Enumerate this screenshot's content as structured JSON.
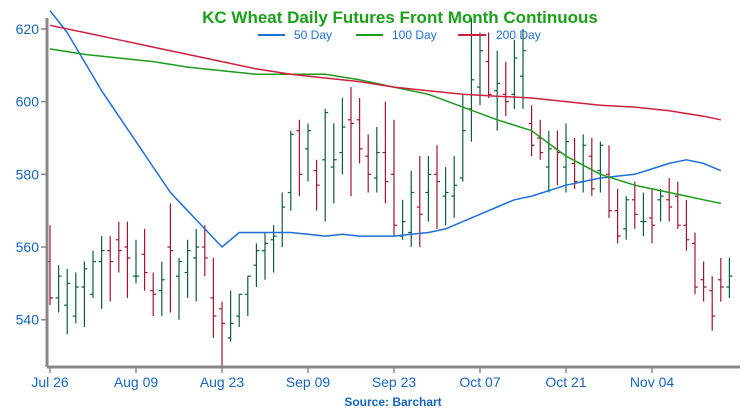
{
  "chart_data": {
    "type": "line",
    "title": "KC Wheat Daily Futures Front Month Continuous",
    "source": "Source: Barchart",
    "ylim": [
      527,
      623
    ],
    "yticks": [
      540,
      560,
      580,
      600,
      620
    ],
    "x_tick_labels": [
      "Jul 26",
      "Aug 09",
      "Aug 23",
      "Sep 09",
      "Sep 23",
      "Oct 07",
      "Oct 21",
      "Nov 04"
    ],
    "x_tick_index": [
      0,
      10,
      20,
      30,
      40,
      50,
      60,
      70
    ],
    "colors": {
      "title": "#1aa01a",
      "axis": "#888888",
      "ticks": "#1565c0",
      "source": "#1565c0",
      "up_bar": "#0b5d3c",
      "down_bar": "#a31530"
    },
    "series": [
      {
        "name": "50 Day",
        "color": "#1e6fd9",
        "x": [
          0,
          2,
          4,
          6,
          8,
          10,
          12,
          14,
          16,
          18,
          20,
          22,
          24,
          26,
          28,
          30,
          32,
          34,
          36,
          38,
          40,
          42,
          44,
          46,
          48,
          50,
          52,
          54,
          56,
          58,
          60,
          62,
          64,
          66,
          68,
          70,
          72,
          74,
          76,
          78
        ],
        "values": [
          625,
          619,
          611,
          603,
          596,
          589,
          582,
          575,
          570,
          565,
          560,
          564,
          564,
          564,
          564,
          563.5,
          563,
          563.5,
          563,
          563,
          563,
          563.5,
          564,
          565,
          567,
          569,
          571,
          573,
          574,
          575.5,
          577,
          578,
          579,
          579.5,
          580,
          581.5,
          583,
          584,
          583,
          581
        ]
      },
      {
        "name": "100 Day",
        "color": "#1e9a1e",
        "x": [
          0,
          4,
          8,
          12,
          16,
          20,
          24,
          28,
          32,
          36,
          40,
          44,
          48,
          52,
          56,
          60,
          62,
          64,
          66,
          68,
          70,
          72,
          74,
          76,
          78
        ],
        "values": [
          614.5,
          613,
          612,
          611,
          609.5,
          608.5,
          607.5,
          607.5,
          607.5,
          606,
          604,
          602,
          598.5,
          595,
          592,
          585,
          582.5,
          580,
          578.5,
          577,
          576,
          575,
          574,
          573,
          572
        ]
      },
      {
        "name": "200 Day",
        "color": "#cf1f3f",
        "x": [
          0,
          4,
          8,
          12,
          16,
          20,
          24,
          28,
          32,
          36,
          40,
          44,
          48,
          52,
          56,
          60,
          64,
          68,
          72,
          76,
          78
        ],
        "values": [
          621,
          619,
          617,
          615,
          613,
          611,
          609,
          607.5,
          606.5,
          605.5,
          604,
          603,
          602,
          601.5,
          601,
          600,
          599,
          598.5,
          597.5,
          596,
          595
        ]
      }
    ],
    "ohlc": [
      [
        556,
        566,
        544,
        546
      ],
      [
        546,
        555,
        542,
        552
      ],
      [
        544,
        554,
        536,
        550
      ],
      [
        541,
        553,
        539,
        549
      ],
      [
        549,
        556,
        538,
        554
      ],
      [
        547,
        559,
        546,
        556
      ],
      [
        556,
        563,
        543,
        559
      ],
      [
        559,
        563,
        545,
        556
      ],
      [
        562,
        567,
        553,
        559
      ],
      [
        560,
        567,
        546,
        557
      ],
      [
        552,
        562,
        550,
        552
      ],
      [
        558,
        565,
        548,
        553
      ],
      [
        548,
        553,
        541,
        547
      ],
      [
        548,
        556,
        541,
        551
      ],
      [
        560,
        572,
        542,
        559
      ],
      [
        552,
        557,
        540,
        556
      ],
      [
        553,
        562,
        546,
        559
      ],
      [
        557,
        565,
        545,
        560
      ],
      [
        560,
        566,
        552,
        557
      ],
      [
        546,
        557,
        535,
        541
      ],
      [
        543,
        545,
        527,
        539
      ],
      [
        535,
        548,
        534,
        539
      ],
      [
        541,
        547,
        538,
        547
      ],
      [
        547,
        552,
        541,
        552
      ],
      [
        555,
        561,
        549,
        559
      ],
      [
        559,
        564,
        551,
        561
      ],
      [
        562,
        566,
        553,
        563
      ],
      [
        564,
        575,
        560,
        571
      ],
      [
        575,
        592,
        570,
        591
      ],
      [
        592,
        595,
        574,
        580
      ],
      [
        587,
        594,
        578,
        592
      ],
      [
        581,
        584,
        570,
        577
      ],
      [
        584,
        598,
        567,
        597
      ],
      [
        582,
        594,
        572,
        584
      ],
      [
        586,
        601,
        580,
        593
      ],
      [
        595,
        604,
        574,
        594
      ],
      [
        595,
        601,
        583,
        587
      ],
      [
        585,
        591,
        575,
        580
      ],
      [
        579,
        593,
        575,
        586
      ],
      [
        586,
        600,
        572,
        578
      ],
      [
        580,
        595,
        563,
        566
      ],
      [
        563,
        573,
        562,
        567
      ],
      [
        564,
        581,
        560,
        575
      ],
      [
        571,
        585,
        560,
        569
      ],
      [
        575,
        585,
        567,
        580
      ],
      [
        580,
        588,
        565,
        578
      ],
      [
        574,
        582,
        566,
        575
      ],
      [
        574,
        585,
        568,
        577
      ],
      [
        579,
        602,
        578,
        592
      ],
      [
        598,
        623,
        589,
        606
      ],
      [
        604,
        619,
        599,
        614
      ],
      [
        611,
        619,
        601,
        602
      ],
      [
        603,
        614,
        592,
        605
      ],
      [
        602,
        611,
        596,
        600
      ],
      [
        602,
        617,
        598,
        612
      ],
      [
        607,
        620,
        598,
        614
      ],
      [
        594,
        599,
        585,
        588
      ],
      [
        590,
        595,
        584,
        586
      ],
      [
        582,
        592,
        575,
        587
      ],
      [
        587,
        592,
        577,
        586
      ],
      [
        582,
        594,
        575,
        589
      ],
      [
        583,
        590,
        576,
        578
      ],
      [
        578,
        591,
        575,
        588
      ],
      [
        585,
        590,
        574,
        576
      ],
      [
        581,
        589,
        575,
        588
      ],
      [
        580,
        588,
        568,
        570
      ],
      [
        570,
        576,
        561,
        563
      ],
      [
        565,
        574,
        562,
        573
      ],
      [
        573,
        578,
        565,
        569
      ],
      [
        567,
        575,
        563,
        567
      ],
      [
        568,
        576,
        561,
        566
      ],
      [
        573,
        576,
        567,
        574
      ],
      [
        573,
        579,
        567,
        571
      ],
      [
        574,
        578,
        565,
        566
      ],
      [
        566,
        573,
        559,
        562
      ],
      [
        561,
        564,
        547,
        549
      ],
      [
        551,
        556,
        545,
        549
      ],
      [
        548,
        552,
        537,
        541
      ],
      [
        551,
        557,
        545,
        549
      ],
      [
        549,
        557,
        546,
        552
      ]
    ]
  }
}
